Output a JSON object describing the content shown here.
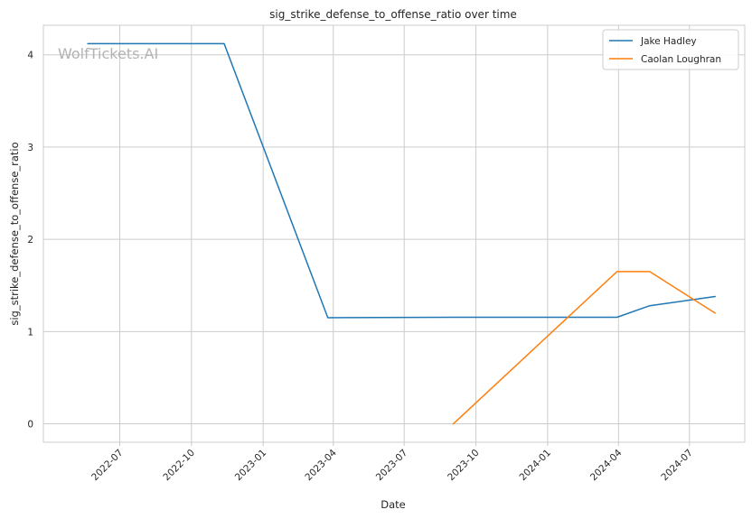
{
  "watermark": "WolfTickets.AI",
  "chart_data": {
    "type": "line",
    "title": "sig_strike_defense_to_offense_ratio over time",
    "xlabel": "Date",
    "ylabel": "sig_strike_defense_to_offense_ratio",
    "xlim": [
      "2022-03-25",
      "2024-09-10"
    ],
    "ylim": [
      -0.2,
      4.32
    ],
    "x_ticks": [
      "2022-07",
      "2022-10",
      "2023-01",
      "2023-04",
      "2023-07",
      "2023-10",
      "2024-01",
      "2024-04",
      "2024-07"
    ],
    "y_ticks": [
      0,
      1,
      2,
      3,
      4
    ],
    "grid": true,
    "legend_position": "top-right",
    "series": [
      {
        "name": "Jake Hadley",
        "color": "#1f77b4",
        "points": [
          {
            "x": "2022-05-21",
            "y": 4.12
          },
          {
            "x": "2022-11-12",
            "y": 4.12
          },
          {
            "x": "2023-03-25",
            "y": 1.15
          },
          {
            "x": "2023-09-02",
            "y": 1.155
          },
          {
            "x": "2024-03-30",
            "y": 1.155
          },
          {
            "x": "2024-05-11",
            "y": 1.28
          },
          {
            "x": "2024-08-03",
            "y": 1.38
          }
        ]
      },
      {
        "name": "Caolan Loughran",
        "color": "#ff7f0e",
        "points": [
          {
            "x": "2023-09-02",
            "y": 0.0
          },
          {
            "x": "2024-03-30",
            "y": 1.65
          },
          {
            "x": "2024-05-11",
            "y": 1.65
          },
          {
            "x": "2024-08-03",
            "y": 1.2
          }
        ]
      }
    ]
  }
}
